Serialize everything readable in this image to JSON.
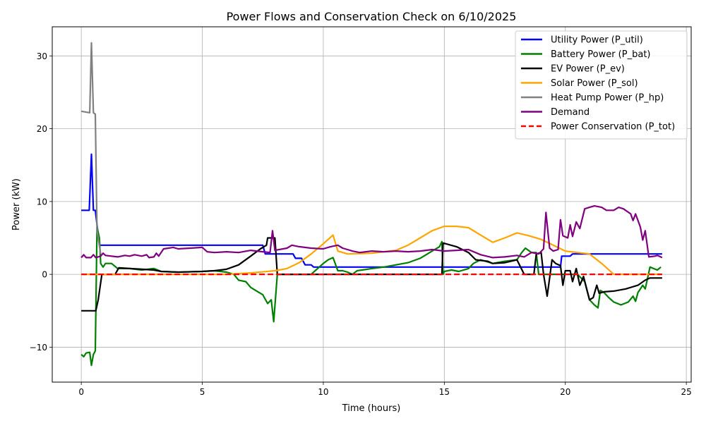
{
  "chart_data": {
    "type": "line",
    "title": "Power Flows and Conservation Check on 6/10/2025",
    "xlabel": "Time (hours)",
    "ylabel": "Power (kW)",
    "xlim": [
      -1.2,
      25.2
    ],
    "ylim": [
      -14.8,
      34
    ],
    "xticks": [
      0,
      5,
      10,
      15,
      20,
      25
    ],
    "yticks": [
      -10,
      0,
      10,
      20,
      30
    ],
    "xtick_labels": [
      "0",
      "5",
      "10",
      "15",
      "20",
      "25"
    ],
    "ytick_labels": [
      "−10",
      "0",
      "10",
      "20",
      "30"
    ],
    "grid": true,
    "legend_position": "top-right",
    "series": [
      {
        "name": "Utility Power (P_util)",
        "color": "#0000ff",
        "dashed": false,
        "points": [
          [
            0,
            8.8
          ],
          [
            0.33,
            8.8
          ],
          [
            0.42,
            16.5
          ],
          [
            0.5,
            8.8
          ],
          [
            0.58,
            8.8
          ],
          [
            0.75,
            4.0
          ],
          [
            7.5,
            4.0
          ],
          [
            7.6,
            2.8
          ],
          [
            8.75,
            2.8
          ],
          [
            8.85,
            2.2
          ],
          [
            9.1,
            2.2
          ],
          [
            9.25,
            1.3
          ],
          [
            9.5,
            1.3
          ],
          [
            9.6,
            1.0
          ],
          [
            19.8,
            1.0
          ],
          [
            19.85,
            2.5
          ],
          [
            20.2,
            2.5
          ],
          [
            20.3,
            2.8
          ],
          [
            24,
            2.8
          ]
        ]
      },
      {
        "name": "Battery Power (P_bat)",
        "color": "#008000",
        "dashed": false,
        "points": [
          [
            0,
            -11.0
          ],
          [
            0.1,
            -11.3
          ],
          [
            0.2,
            -10.8
          ],
          [
            0.35,
            -10.7
          ],
          [
            0.42,
            -12.5
          ],
          [
            0.5,
            -11.0
          ],
          [
            0.58,
            -10.5
          ],
          [
            0.65,
            6.5
          ],
          [
            0.75,
            5.0
          ],
          [
            0.8,
            1.5
          ],
          [
            0.9,
            1.0
          ],
          [
            1.0,
            1.5
          ],
          [
            1.25,
            1.5
          ],
          [
            1.5,
            0.8
          ],
          [
            2.0,
            0.8
          ],
          [
            2.5,
            0.6
          ],
          [
            3.0,
            0.8
          ],
          [
            3.3,
            0.4
          ],
          [
            4.0,
            0.3
          ],
          [
            5.0,
            0.4
          ],
          [
            5.5,
            0.5
          ],
          [
            6.0,
            0.3
          ],
          [
            6.3,
            0.0
          ],
          [
            6.5,
            -0.8
          ],
          [
            6.8,
            -1.0
          ],
          [
            7.0,
            -1.8
          ],
          [
            7.2,
            -2.2
          ],
          [
            7.5,
            -2.8
          ],
          [
            7.7,
            -4.0
          ],
          [
            7.85,
            -3.5
          ],
          [
            7.95,
            -6.5
          ],
          [
            8.1,
            0.0
          ],
          [
            9.5,
            0.0
          ],
          [
            10.0,
            1.5
          ],
          [
            10.2,
            2.0
          ],
          [
            10.4,
            2.3
          ],
          [
            10.6,
            0.5
          ],
          [
            10.8,
            0.5
          ],
          [
            11.0,
            0.3
          ],
          [
            11.2,
            0.0
          ],
          [
            11.4,
            0.5
          ],
          [
            11.6,
            0.6
          ],
          [
            12.0,
            0.8
          ],
          [
            12.5,
            1.0
          ],
          [
            13.0,
            1.3
          ],
          [
            13.5,
            1.6
          ],
          [
            14.0,
            2.2
          ],
          [
            14.5,
            3.2
          ],
          [
            14.8,
            3.8
          ],
          [
            14.9,
            4.5
          ],
          [
            14.95,
            0.0
          ],
          [
            15.0,
            0.4
          ],
          [
            15.3,
            0.6
          ],
          [
            15.6,
            0.4
          ],
          [
            16.0,
            0.8
          ],
          [
            16.2,
            1.5
          ],
          [
            16.5,
            2.0
          ],
          [
            17.0,
            1.5
          ],
          [
            17.5,
            1.8
          ],
          [
            18.0,
            2.0
          ],
          [
            18.2,
            3.0
          ],
          [
            18.35,
            3.6
          ],
          [
            18.6,
            3.0
          ],
          [
            18.8,
            3.0
          ],
          [
            18.9,
            0.0
          ],
          [
            20.0,
            0.0
          ],
          [
            20.5,
            0.0
          ],
          [
            20.8,
            -1.0
          ],
          [
            21.0,
            -3.5
          ],
          [
            21.2,
            -4.2
          ],
          [
            21.35,
            -4.6
          ],
          [
            21.45,
            -2.2
          ],
          [
            21.6,
            -2.5
          ],
          [
            21.8,
            -3.2
          ],
          [
            22.0,
            -3.8
          ],
          [
            22.3,
            -4.2
          ],
          [
            22.6,
            -3.8
          ],
          [
            22.8,
            -3.0
          ],
          [
            22.9,
            -3.7
          ],
          [
            23.0,
            -2.5
          ],
          [
            23.2,
            -1.5
          ],
          [
            23.3,
            -2.0
          ],
          [
            23.5,
            1.0
          ],
          [
            23.8,
            0.6
          ],
          [
            23.95,
            1.0
          ]
        ]
      },
      {
        "name": "EV Power (P_ev)",
        "color": "#000000",
        "dashed": false,
        "points": [
          [
            0,
            -5.0
          ],
          [
            0.6,
            -5.0
          ],
          [
            0.7,
            -3.5
          ],
          [
            0.85,
            0.0
          ],
          [
            1.4,
            0.0
          ],
          [
            1.55,
            0.9
          ],
          [
            2.0,
            0.8
          ],
          [
            2.5,
            0.7
          ],
          [
            3.0,
            0.6
          ],
          [
            3.3,
            0.4
          ],
          [
            4.0,
            0.3
          ],
          [
            5.0,
            0.4
          ],
          [
            5.5,
            0.5
          ],
          [
            6.0,
            0.7
          ],
          [
            6.5,
            1.3
          ],
          [
            7.0,
            2.5
          ],
          [
            7.4,
            3.5
          ],
          [
            7.65,
            4.0
          ],
          [
            7.7,
            5.0
          ],
          [
            8.0,
            5.0
          ],
          [
            8.1,
            0.0
          ],
          [
            14.9,
            0.0
          ],
          [
            14.95,
            4.3
          ],
          [
            15.5,
            3.8
          ],
          [
            16.0,
            3.0
          ],
          [
            16.3,
            2.0
          ],
          [
            16.8,
            1.8
          ],
          [
            17.0,
            1.5
          ],
          [
            17.5,
            1.6
          ],
          [
            18.0,
            2.0
          ],
          [
            18.3,
            0.0
          ],
          [
            18.7,
            0.0
          ],
          [
            18.8,
            2.8
          ],
          [
            19.0,
            3.0
          ],
          [
            19.1,
            0.0
          ],
          [
            19.25,
            -3.0
          ],
          [
            19.35,
            -0.5
          ],
          [
            19.45,
            2.0
          ],
          [
            19.6,
            1.5
          ],
          [
            19.8,
            1.2
          ],
          [
            19.9,
            -1.5
          ],
          [
            20.0,
            0.5
          ],
          [
            20.2,
            0.5
          ],
          [
            20.3,
            -1.0
          ],
          [
            20.45,
            0.8
          ],
          [
            20.6,
            -1.5
          ],
          [
            20.75,
            -0.3
          ],
          [
            21.0,
            -3.5
          ],
          [
            21.15,
            -3.2
          ],
          [
            21.3,
            -1.5
          ],
          [
            21.4,
            -2.6
          ],
          [
            21.6,
            -2.4
          ],
          [
            22.0,
            -2.3
          ],
          [
            22.5,
            -2.0
          ],
          [
            23.0,
            -1.5
          ],
          [
            23.3,
            -0.8
          ],
          [
            23.5,
            -0.5
          ],
          [
            24,
            -0.5
          ]
        ]
      },
      {
        "name": "Solar Power (P_sol)",
        "color": "#ffa500",
        "dashed": false,
        "points": [
          [
            0,
            0
          ],
          [
            6.0,
            0.0
          ],
          [
            7.0,
            0.2
          ],
          [
            8.0,
            0.5
          ],
          [
            8.5,
            0.8
          ],
          [
            9.0,
            1.6
          ],
          [
            9.5,
            2.8
          ],
          [
            10.0,
            4.2
          ],
          [
            10.4,
            5.4
          ],
          [
            10.6,
            3.2
          ],
          [
            11.0,
            2.8
          ],
          [
            12.0,
            2.9
          ],
          [
            13.0,
            3.3
          ],
          [
            13.5,
            4.0
          ],
          [
            14.0,
            5.0
          ],
          [
            14.5,
            6.0
          ],
          [
            15.0,
            6.6
          ],
          [
            15.5,
            6.6
          ],
          [
            16.0,
            6.4
          ],
          [
            16.5,
            5.4
          ],
          [
            17.0,
            4.4
          ],
          [
            17.5,
            5.0
          ],
          [
            18.0,
            5.7
          ],
          [
            18.5,
            5.3
          ],
          [
            19.0,
            4.8
          ],
          [
            19.5,
            4.0
          ],
          [
            20.0,
            3.2
          ],
          [
            20.5,
            3.0
          ],
          [
            21.0,
            2.8
          ],
          [
            21.5,
            1.5
          ],
          [
            22.0,
            0.0
          ],
          [
            24,
            0
          ]
        ]
      },
      {
        "name": "Heat Pump Power (P_hp)",
        "color": "#808080",
        "dashed": false,
        "points": [
          [
            0,
            22.4
          ],
          [
            0.35,
            22.2
          ],
          [
            0.42,
            31.8
          ],
          [
            0.5,
            22.2
          ],
          [
            0.58,
            22.0
          ],
          [
            0.65,
            6.0
          ],
          [
            0.8,
            2.8
          ]
        ]
      },
      {
        "name": "Demand",
        "color": "#800080",
        "dashed": false,
        "points": [
          [
            0,
            2.3
          ],
          [
            0.1,
            2.7
          ],
          [
            0.2,
            2.3
          ],
          [
            0.4,
            2.3
          ],
          [
            0.5,
            2.7
          ],
          [
            0.6,
            2.3
          ],
          [
            0.8,
            2.5
          ],
          [
            0.9,
            2.9
          ],
          [
            1.0,
            2.6
          ],
          [
            1.5,
            2.4
          ],
          [
            1.8,
            2.6
          ],
          [
            2.0,
            2.5
          ],
          [
            2.2,
            2.7
          ],
          [
            2.5,
            2.5
          ],
          [
            2.7,
            2.7
          ],
          [
            2.8,
            2.3
          ],
          [
            3.0,
            2.4
          ],
          [
            3.1,
            2.9
          ],
          [
            3.2,
            2.5
          ],
          [
            3.4,
            3.5
          ],
          [
            3.6,
            3.6
          ],
          [
            3.8,
            3.7
          ],
          [
            4.0,
            3.5
          ],
          [
            4.5,
            3.6
          ],
          [
            5.0,
            3.7
          ],
          [
            5.2,
            3.1
          ],
          [
            5.5,
            3.0
          ],
          [
            6.0,
            3.1
          ],
          [
            6.5,
            3.0
          ],
          [
            7.0,
            3.3
          ],
          [
            7.5,
            3.1
          ],
          [
            7.8,
            3.0
          ],
          [
            7.9,
            6.0
          ],
          [
            8.0,
            3.3
          ],
          [
            8.5,
            3.6
          ],
          [
            8.7,
            4.0
          ],
          [
            9.0,
            3.8
          ],
          [
            9.5,
            3.6
          ],
          [
            10.0,
            3.5
          ],
          [
            10.3,
            3.8
          ],
          [
            10.6,
            4.0
          ],
          [
            10.8,
            3.6
          ],
          [
            11.0,
            3.4
          ],
          [
            11.2,
            3.2
          ],
          [
            11.5,
            3.0
          ],
          [
            12.0,
            3.2
          ],
          [
            12.5,
            3.1
          ],
          [
            13.0,
            3.2
          ],
          [
            13.5,
            3.1
          ],
          [
            14.0,
            3.2
          ],
          [
            14.5,
            3.4
          ],
          [
            15.0,
            3.2
          ],
          [
            15.5,
            3.3
          ],
          [
            16.0,
            3.4
          ],
          [
            16.5,
            2.7
          ],
          [
            17.0,
            2.3
          ],
          [
            17.5,
            2.4
          ],
          [
            18.0,
            2.6
          ],
          [
            18.3,
            2.4
          ],
          [
            18.6,
            3.0
          ],
          [
            18.9,
            2.8
          ],
          [
            19.1,
            3.5
          ],
          [
            19.2,
            8.5
          ],
          [
            19.35,
            3.6
          ],
          [
            19.5,
            3.2
          ],
          [
            19.7,
            3.4
          ],
          [
            19.8,
            7.5
          ],
          [
            19.9,
            5.3
          ],
          [
            20.1,
            5.0
          ],
          [
            20.2,
            6.8
          ],
          [
            20.3,
            5.2
          ],
          [
            20.45,
            7.2
          ],
          [
            20.6,
            6.3
          ],
          [
            20.8,
            9.0
          ],
          [
            21.0,
            9.2
          ],
          [
            21.2,
            9.4
          ],
          [
            21.5,
            9.2
          ],
          [
            21.7,
            8.8
          ],
          [
            22.0,
            8.8
          ],
          [
            22.2,
            9.2
          ],
          [
            22.4,
            9.0
          ],
          [
            22.7,
            8.3
          ],
          [
            22.8,
            7.4
          ],
          [
            22.9,
            8.3
          ],
          [
            23.1,
            6.5
          ],
          [
            23.2,
            4.7
          ],
          [
            23.3,
            6.0
          ],
          [
            23.45,
            2.4
          ],
          [
            23.7,
            2.5
          ],
          [
            23.8,
            2.6
          ],
          [
            24,
            2.3
          ]
        ]
      },
      {
        "name": "Power Conservation (P_tot)",
        "color": "#ff0000",
        "dashed": true,
        "points": [
          [
            0,
            0
          ],
          [
            24,
            0
          ]
        ]
      }
    ]
  }
}
